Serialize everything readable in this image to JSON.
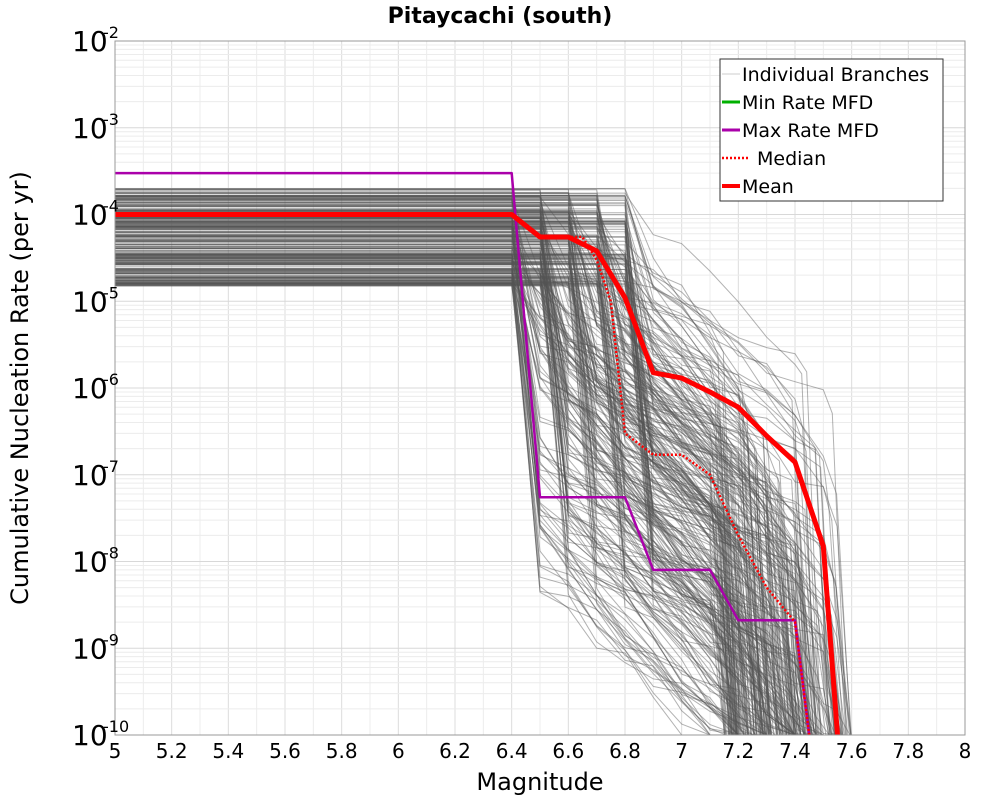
{
  "chart_data": {
    "type": "line",
    "title": "Pitaycachi (south)",
    "xlabel": "Magnitude",
    "ylabel": "Cumulative Nucleation Rate (per yr)",
    "xlim": [
      5,
      8
    ],
    "ylim": [
      1e-10,
      0.01
    ],
    "yscale": "log",
    "grid": true,
    "legend_position": "top-right",
    "x_ticks": [
      "5",
      "5.2",
      "5.4",
      "5.6",
      "5.8",
      "6",
      "6.2",
      "6.4",
      "6.6",
      "6.8",
      "7",
      "7.2",
      "7.4",
      "7.6",
      "7.8",
      "8"
    ],
    "y_ticks": [
      {
        "base": "10",
        "exp": "-2"
      },
      {
        "base": "10",
        "exp": "-3"
      },
      {
        "base": "10",
        "exp": "-4"
      },
      {
        "base": "10",
        "exp": "-5"
      },
      {
        "base": "10",
        "exp": "-6"
      },
      {
        "base": "10",
        "exp": "-7"
      },
      {
        "base": "10",
        "exp": "-8"
      },
      {
        "base": "10",
        "exp": "-9"
      },
      {
        "base": "10",
        "exp": "-10"
      }
    ],
    "series": [
      {
        "name": "Min Rate MFD",
        "color": "#00b000",
        "style": "solid",
        "x": [],
        "y": []
      },
      {
        "name": "Max Rate MFD",
        "color": "#aa00aa",
        "style": "solid",
        "x": [
          5.0,
          6.4,
          6.5,
          6.8,
          6.9,
          7.1,
          7.2,
          7.4,
          7.45
        ],
        "y": [
          0.0003,
          0.0003,
          5.5e-08,
          5.5e-08,
          8e-09,
          8e-09,
          2.1e-09,
          2.1e-09,
          1e-10
        ]
      },
      {
        "name": "Median",
        "color": "#ff0000",
        "style": "dotted",
        "x": [
          5.0,
          6.4,
          6.5,
          6.65,
          6.7,
          6.75,
          6.8,
          6.9,
          7.0,
          7.1,
          7.2,
          7.3,
          7.4,
          7.45
        ],
        "y": [
          0.0001,
          0.0001,
          5.5e-05,
          5.5e-05,
          3e-05,
          1e-05,
          3e-07,
          1.7e-07,
          1.7e-07,
          1e-07,
          2e-08,
          5e-09,
          2e-09,
          1e-10
        ]
      },
      {
        "name": "Mean",
        "color": "#ff0000",
        "style": "solid-thick",
        "x": [
          5.0,
          6.4,
          6.5,
          6.6,
          6.7,
          6.8,
          6.9,
          7.0,
          7.1,
          7.2,
          7.3,
          7.4,
          7.5,
          7.55
        ],
        "y": [
          0.0001,
          0.0001,
          5.5e-05,
          5.5e-05,
          3.8e-05,
          1.1e-05,
          1.5e-06,
          1.3e-06,
          9e-07,
          6e-07,
          2.8e-07,
          1.4e-07,
          1.5e-08,
          1e-10
        ]
      }
    ],
    "individual_branches": {
      "name": "Individual Branches",
      "color": "#555555",
      "count": 300,
      "magnitude_range": [
        5.0,
        7.55
      ],
      "rate_range_at_M5": [
        1.5e-05,
        0.0002
      ],
      "visual_only": true
    }
  },
  "legend": {
    "items": [
      {
        "label": "Individual Branches",
        "color": "#cccccc",
        "style": "thin"
      },
      {
        "label": "Min Rate MFD",
        "color": "#00b000",
        "style": "solid"
      },
      {
        "label": "Max Rate MFD",
        "color": "#aa00aa",
        "style": "solid"
      },
      {
        "label": "Median",
        "color": "#ff0000",
        "style": "dotted"
      },
      {
        "label": "Mean",
        "color": "#ff0000",
        "style": "thick"
      }
    ]
  }
}
